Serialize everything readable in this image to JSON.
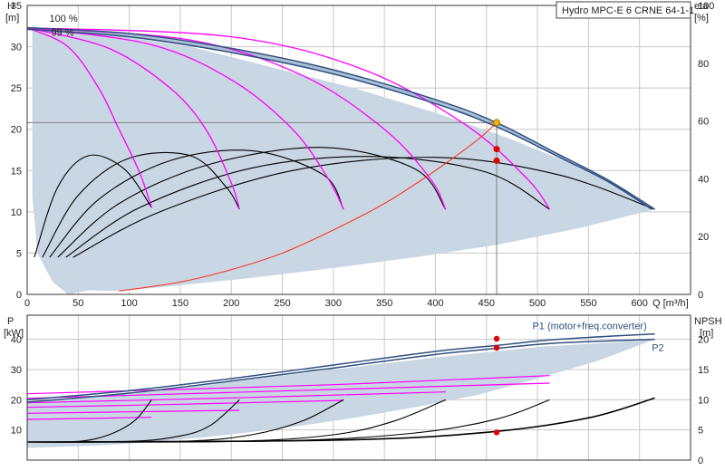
{
  "title": "Hydro MPC-E 6 CRNE 64-1-1",
  "colors": {
    "envelope_fill": "#c9d6e3",
    "speed_curve": "#ff00ff",
    "pump_curve": "#000000",
    "system_curve": "#ff2a1a",
    "max_curve": "#2f4f7f",
    "duty_point": "#e00000",
    "duty_point_top": "#f5b400",
    "duty_line": "#808080"
  },
  "chart_data": [
    {
      "id": "head",
      "type": "line",
      "xlabel": "Q [m³/h]",
      "ylabel": "H",
      "ylabel_unit": "[m]",
      "y2label": "eta",
      "y2label_unit": "[%]",
      "xlim": [
        0,
        650
      ],
      "ylim": [
        0,
        35
      ],
      "y2lim": [
        0,
        100
      ],
      "x_ticks": [
        "0",
        "50",
        "100",
        "150",
        "200",
        "250",
        "300",
        "350",
        "400",
        "450",
        "500",
        "550",
        "600"
      ],
      "y_ticks": [
        "0",
        "5",
        "10",
        "15",
        "20",
        "25",
        "30",
        "35"
      ],
      "y2_ticks": [
        "0",
        "20",
        "40",
        "60",
        "80",
        "100"
      ],
      "grid": true,
      "annotations": [
        {
          "text": "100 %",
          "x": 20,
          "y": 32.6
        },
        {
          "text": "99 %",
          "x": 20,
          "y": 30.9
        }
      ],
      "envelope": [
        [
          5,
          32.3
        ],
        [
          80,
          31.5
        ],
        [
          160,
          30
        ],
        [
          240,
          27.5
        ],
        [
          320,
          25
        ],
        [
          400,
          22
        ],
        [
          470,
          19
        ],
        [
          530,
          16
        ],
        [
          580,
          13
        ],
        [
          615,
          10.3
        ],
        [
          540,
          8
        ],
        [
          460,
          6
        ],
        [
          380,
          4.5
        ],
        [
          300,
          3.2
        ],
        [
          220,
          2
        ],
        [
          150,
          1.1
        ],
        [
          90,
          0.4
        ],
        [
          60,
          0.5
        ],
        [
          40,
          0
        ],
        [
          25,
          1.5
        ],
        [
          10,
          5
        ],
        [
          5,
          12
        ]
      ],
      "max_curves": [
        {
          "name": "100 %",
          "points": [
            [
              0,
              32.3
            ],
            [
              100,
              31.6
            ],
            [
              200,
              29.8
            ],
            [
              300,
              27.2
            ],
            [
              400,
              23.6
            ],
            [
              460,
              20.8
            ],
            [
              520,
              17
            ],
            [
              570,
              13.8
            ],
            [
              615,
              10.3
            ]
          ]
        },
        {
          "name": "99 %",
          "points": [
            [
              0,
              32.1
            ],
            [
              100,
              31.2
            ],
            [
              200,
              29.3
            ],
            [
              300,
              26.7
            ],
            [
              400,
              23.1
            ],
            [
              460,
              20.3
            ],
            [
              520,
              16.7
            ],
            [
              570,
              13.6
            ],
            [
              612,
              10.3
            ]
          ]
        }
      ],
      "speed_curves": [
        {
          "points": [
            [
              0,
              32.3
            ],
            [
              40,
              30
            ],
            [
              70,
              25
            ],
            [
              90,
              20
            ],
            [
              110,
              14.8
            ],
            [
              122,
              10.5
            ]
          ]
        },
        {
          "points": [
            [
              0,
              32.3
            ],
            [
              80,
              29.8
            ],
            [
              140,
              25
            ],
            [
              175,
              20
            ],
            [
              200,
              13.5
            ],
            [
              208,
              10.3
            ]
          ]
        },
        {
          "points": [
            [
              0,
              32.3
            ],
            [
              120,
              30.3
            ],
            [
              200,
              26
            ],
            [
              260,
              20
            ],
            [
              295,
              14
            ],
            [
              310,
              10.3
            ]
          ]
        },
        {
          "points": [
            [
              0,
              32.3
            ],
            [
              160,
              30.8
            ],
            [
              270,
              26.5
            ],
            [
              350,
              20
            ],
            [
              395,
              14
            ],
            [
              410,
              10.3
            ]
          ]
        },
        {
          "points": [
            [
              0,
              32.3
            ],
            [
              200,
              31.2
            ],
            [
              330,
              27.2
            ],
            [
              430,
              20.5
            ],
            [
              490,
              14
            ],
            [
              512,
              10.3
            ]
          ]
        }
      ],
      "pump_curves": [
        {
          "points": [
            [
              7,
              4.5
            ],
            [
              30,
              13
            ],
            [
              60,
              16.8
            ],
            [
              95,
              15.2
            ],
            [
              122,
              10.5
            ]
          ]
        },
        {
          "points": [
            [
              15,
              4.5
            ],
            [
              50,
              12
            ],
            [
              100,
              16.5
            ],
            [
              160,
              16.8
            ],
            [
              195,
              13
            ],
            [
              208,
              10.3
            ]
          ]
        },
        {
          "points": [
            [
              22,
              4.5
            ],
            [
              70,
              11.5
            ],
            [
              140,
              16.2
            ],
            [
              220,
              17.4
            ],
            [
              290,
              14.5
            ],
            [
              310,
              10.3
            ]
          ]
        },
        {
          "points": [
            [
              30,
              4.5
            ],
            [
              90,
              11
            ],
            [
              180,
              15.8
            ],
            [
              290,
              17.8
            ],
            [
              380,
              15.2
            ],
            [
              410,
              10.3
            ]
          ]
        },
        {
          "points": [
            [
              38,
              4.5
            ],
            [
              110,
              10.5
            ],
            [
              220,
              15.3
            ],
            [
              340,
              16.7
            ],
            [
              450,
              14.8
            ],
            [
              512,
              10.3
            ]
          ]
        },
        {
          "points": [
            [
              45,
              4.5
            ],
            [
              130,
              10
            ],
            [
              260,
              15
            ],
            [
              400,
              16.6
            ],
            [
              520,
              14.5
            ],
            [
              615,
              10.3
            ]
          ]
        }
      ],
      "system_curve": [
        [
          90,
          0.4
        ],
        [
          150,
          1.5
        ],
        [
          200,
          3
        ],
        [
          250,
          5
        ],
        [
          300,
          7.8
        ],
        [
          350,
          11
        ],
        [
          400,
          15
        ],
        [
          440,
          18.6
        ],
        [
          460,
          20.8
        ]
      ],
      "duty_points": [
        {
          "x": 460,
          "y": 20.8,
          "kind": "top"
        },
        {
          "x": 460,
          "y": 17.6,
          "kind": "eta"
        },
        {
          "x": 460,
          "y": 16.2,
          "kind": "eta"
        }
      ]
    },
    {
      "id": "power",
      "type": "line",
      "ylabel": "P",
      "ylabel_unit": "[kW]",
      "y2label": "NPSH",
      "y2label_unit": "[m]",
      "xlim": [
        0,
        650
      ],
      "ylim": [
        0,
        48
      ],
      "y2lim": [
        0,
        24
      ],
      "y_ticks": [
        "10",
        "20",
        "30",
        "40"
      ],
      "y2_ticks": [
        "0",
        "5",
        "10",
        "15",
        "20"
      ],
      "grid": true,
      "labels": [
        {
          "text": "P1 (motor+freq.converter)",
          "x": 495,
          "y": 44.5
        },
        {
          "text": "P2",
          "x": 612,
          "y": 38
        }
      ],
      "envelope": [
        [
          0,
          19.5
        ],
        [
          100,
          22
        ],
        [
          200,
          26
        ],
        [
          300,
          30
        ],
        [
          400,
          34
        ],
        [
          500,
          37.5
        ],
        [
          600,
          39.5
        ],
        [
          615,
          40
        ],
        [
          560,
          33
        ],
        [
          500,
          27
        ],
        [
          440,
          21.5
        ],
        [
          380,
          17.5
        ],
        [
          320,
          14
        ],
        [
          260,
          11
        ],
        [
          200,
          8.5
        ],
        [
          140,
          6.5
        ],
        [
          80,
          5
        ],
        [
          0,
          4
        ]
      ],
      "p1_curves": [
        {
          "points": [
            [
              0,
              20
            ],
            [
              100,
              23
            ],
            [
              200,
              27
            ],
            [
              300,
              31.5
            ],
            [
              400,
              36
            ],
            [
              460,
              38
            ],
            [
              520,
              40
            ],
            [
              615,
              41.8
            ]
          ]
        },
        {
          "points": [
            [
              0,
              19.2
            ],
            [
              100,
              22.2
            ],
            [
              200,
              26.2
            ],
            [
              300,
              30.5
            ],
            [
              400,
              35
            ],
            [
              460,
              37
            ],
            [
              520,
              38.8
            ],
            [
              615,
              40
            ]
          ]
        }
      ],
      "speed_power": [
        {
          "points": [
            [
              0,
              13.5
            ],
            [
              60,
              13.8
            ],
            [
              122,
              14.2
            ]
          ]
        },
        {
          "points": [
            [
              0,
              15.5
            ],
            [
              100,
              16
            ],
            [
              208,
              16.5
            ]
          ]
        },
        {
          "points": [
            [
              0,
              17.5
            ],
            [
              150,
              18.5
            ],
            [
              310,
              19.8
            ]
          ]
        },
        {
          "points": [
            [
              0,
              19
            ],
            [
              200,
              20.6
            ],
            [
              410,
              22.6
            ]
          ]
        },
        {
          "points": [
            [
              0,
              20.5
            ],
            [
              260,
              23
            ],
            [
              512,
              25.5
            ]
          ]
        },
        {
          "points": [
            [
              0,
              22
            ],
            [
              300,
              25
            ],
            [
              512,
              28
            ]
          ]
        }
      ],
      "npsh_curves": [
        {
          "points": [
            [
              0,
              3
            ],
            [
              50,
              3.1
            ],
            [
              80,
              4.2
            ],
            [
              105,
              6.5
            ],
            [
              122,
              10
            ]
          ]
        },
        {
          "points": [
            [
              0,
              3
            ],
            [
              100,
              3.1
            ],
            [
              150,
              4
            ],
            [
              180,
              5.8
            ],
            [
              208,
              10
            ]
          ]
        },
        {
          "points": [
            [
              0,
              3
            ],
            [
              150,
              3.1
            ],
            [
              220,
              4.2
            ],
            [
              270,
              6.5
            ],
            [
              310,
              10
            ]
          ]
        },
        {
          "points": [
            [
              0,
              3
            ],
            [
              200,
              3.1
            ],
            [
              300,
              4.2
            ],
            [
              360,
              6.5
            ],
            [
              410,
              10
            ]
          ]
        },
        {
          "points": [
            [
              0,
              3
            ],
            [
              250,
              3.2
            ],
            [
              380,
              4.5
            ],
            [
              460,
              6.8
            ],
            [
              512,
              10
            ]
          ]
        },
        {
          "points": [
            [
              0,
              3
            ],
            [
              300,
              3.3
            ],
            [
              450,
              4.6
            ],
            [
              550,
              7
            ],
            [
              615,
              10.3
            ]
          ]
        }
      ],
      "duty_points": [
        {
          "x": 460,
          "y": 40.2
        },
        {
          "x": 460,
          "y": 37.2
        },
        {
          "x": 460,
          "y": 9.2
        }
      ]
    }
  ]
}
